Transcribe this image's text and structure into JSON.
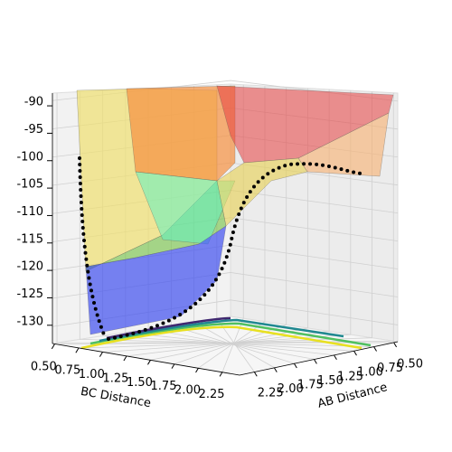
{
  "chart_data": {
    "type": "surface3d",
    "xlabel": "BC Distance",
    "ylabel": "AB Distance",
    "xlim": [
      0.45,
      2.4
    ],
    "xticks": [
      {
        "value": 0.5,
        "label": "0.50"
      },
      0.75,
      {
        "value": 1.0,
        "label": "1.00"
      },
      1.25,
      {
        "value": 1.5,
        "label": "1.50"
      },
      1.75,
      {
        "value": 2.0,
        "label": "2.00"
      },
      2.25
    ],
    "ylim": [
      0.45,
      2.4
    ],
    "yticks": [
      {
        "value": 0.5,
        "label": "0.50"
      },
      0.75,
      {
        "value": 1.0,
        "label": "1.00"
      },
      1.25,
      {
        "value": 1.5,
        "label": "1.50"
      },
      1.75,
      {
        "value": 2.0,
        "label": "2.00"
      },
      2.25
    ],
    "zlim": [
      -133,
      -89
    ],
    "zticks": [
      -90,
      -95,
      -100,
      -105,
      -110,
      -115,
      -120,
      -125,
      -130
    ],
    "grid": true
  }
}
